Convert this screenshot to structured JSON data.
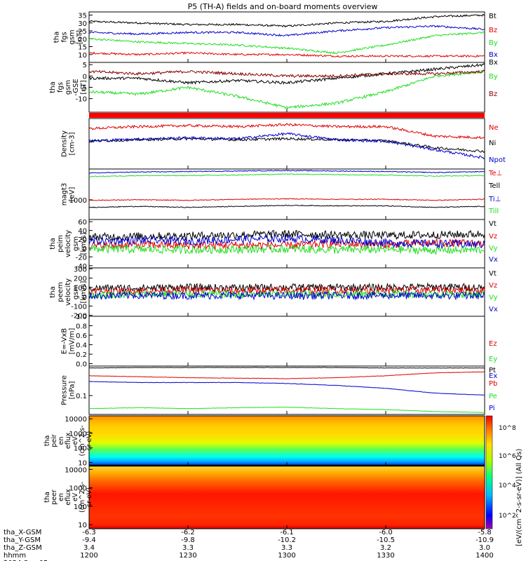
{
  "title": "P5 (TH-A) fields and on-board moments overview",
  "colors": {
    "black": "#000000",
    "red": "#e00000",
    "green": "#22dd22",
    "blue": "#0000cc"
  },
  "chart_data": [
    {
      "type": "line",
      "id": "fgs-btot",
      "ylabel": [
        "tha",
        "fgs",
        "gsm",
        "[nT]"
      ],
      "ylim": [
        5,
        37
      ],
      "yticks": [
        10,
        15,
        20,
        25,
        30,
        35
      ],
      "series": [
        {
          "name": "Bt",
          "color": "#000000",
          "x": [
            1200,
            1215,
            1230,
            1245,
            1300,
            1315,
            1330,
            1345,
            1400
          ],
          "values": [
            31,
            30,
            29,
            29,
            28,
            30,
            31,
            34,
            35
          ]
        },
        {
          "name": "Bz",
          "color": "#e00000",
          "x": [
            1200,
            1215,
            1230,
            1245,
            1300,
            1315,
            1330,
            1345,
            1400
          ],
          "values": [
            11,
            10,
            11,
            10,
            10,
            9,
            9,
            9,
            9
          ]
        },
        {
          "name": "By",
          "color": "#22dd22",
          "x": [
            1200,
            1215,
            1230,
            1245,
            1300,
            1315,
            1330,
            1345,
            1400
          ],
          "values": [
            20,
            18,
            17,
            16,
            14,
            11,
            16,
            22,
            24
          ]
        },
        {
          "name": "Bx",
          "color": "#0000cc",
          "x": [
            1200,
            1215,
            1230,
            1245,
            1300,
            1315,
            1330,
            1345,
            1400
          ],
          "values": [
            24,
            23,
            24,
            24,
            22,
            25,
            27,
            28,
            26
          ]
        }
      ]
    },
    {
      "type": "line",
      "id": "fgs-gse",
      "ylabel": [
        "tha",
        "fgs",
        "gsm",
        "-GSE",
        "[nT]"
      ],
      "ylim": [
        -16,
        6
      ],
      "yticks": [
        -10,
        -5,
        0,
        5
      ],
      "series": [
        {
          "name": "Bx",
          "color": "#000000",
          "x": [
            1200,
            1215,
            1230,
            1245,
            1300,
            1315,
            1330,
            1345,
            1400
          ],
          "values": [
            -1,
            -1,
            -3,
            -2,
            -3,
            -1,
            1,
            3,
            5
          ]
        },
        {
          "name": "By",
          "color": "#22dd22",
          "x": [
            1200,
            1215,
            1230,
            1245,
            1300,
            1315,
            1330,
            1345,
            1400
          ],
          "values": [
            -7,
            -8,
            -5,
            -9,
            -14,
            -12,
            -7,
            0,
            2
          ]
        },
        {
          "name": "Bz",
          "color": "#8b0000",
          "x": [
            1200,
            1215,
            1230,
            1245,
            1300,
            1315,
            1330,
            1345,
            1400
          ],
          "values": [
            2,
            1,
            2,
            1,
            0,
            0,
            1,
            1,
            2
          ]
        }
      ]
    },
    {
      "type": "bar",
      "id": "mode-bar",
      "color": "#ff0000"
    },
    {
      "type": "line",
      "id": "density",
      "ylabel": [
        "Density",
        "[cm-3]"
      ],
      "series": [
        {
          "name": "Ne",
          "color": "#e00000",
          "x": [
            1200,
            1215,
            1230,
            1245,
            1300,
            1315,
            1330,
            1345,
            1400
          ],
          "values": [
            0.8,
            0.84,
            0.86,
            0.84,
            0.88,
            0.84,
            0.84,
            0.65,
            0.62
          ]
        },
        {
          "name": "Ni",
          "color": "#000000",
          "x": [
            1200,
            1215,
            1230,
            1245,
            1300,
            1315,
            1330,
            1345,
            1400
          ],
          "values": [
            0.55,
            0.58,
            0.6,
            0.58,
            0.6,
            0.58,
            0.56,
            0.42,
            0.35
          ]
        },
        {
          "name": "Npot",
          "color": "#0000cc",
          "x": [
            1200,
            1215,
            1230,
            1245,
            1300,
            1315,
            1330,
            1345,
            1400
          ],
          "values": [
            0.56,
            0.59,
            0.62,
            0.6,
            0.7,
            0.58,
            0.55,
            0.38,
            0.22
          ]
        }
      ]
    },
    {
      "type": "line",
      "id": "temperature",
      "ylabel": [
        "magt3",
        "[eV]"
      ],
      "yticks": [
        1000
      ],
      "series": [
        {
          "name": "Te⊥",
          "color": "#e00000",
          "x": [
            1200,
            1215,
            1230,
            1245,
            1300,
            1315,
            1330,
            1345,
            1400
          ],
          "values": [
            0.38,
            0.39,
            0.38,
            0.4,
            0.41,
            0.4,
            0.4,
            0.38,
            0.4
          ]
        },
        {
          "name": "Tell",
          "color": "#000000",
          "x": [
            1200,
            1215,
            1230,
            1245,
            1300,
            1315,
            1330,
            1345,
            1400
          ],
          "values": [
            0.24,
            0.26,
            0.24,
            0.26,
            0.28,
            0.27,
            0.27,
            0.24,
            0.26
          ]
        },
        {
          "name": "Ti⊥",
          "color": "#0000cc",
          "x": [
            1200,
            1215,
            1230,
            1245,
            1300,
            1315,
            1330,
            1345,
            1400
          ],
          "values": [
            0.92,
            0.94,
            0.95,
            0.96,
            0.97,
            0.96,
            0.95,
            0.93,
            0.95
          ]
        },
        {
          "name": "Till",
          "color": "#22dd22",
          "x": [
            1200,
            1215,
            1230,
            1245,
            1300,
            1315,
            1330,
            1345,
            1400
          ],
          "values": [
            0.85,
            0.87,
            0.87,
            0.88,
            0.9,
            0.89,
            0.88,
            0.86,
            0.87
          ]
        }
      ]
    },
    {
      "type": "line",
      "id": "peim-velocity",
      "ylabel": [
        "tha",
        "peim",
        "velocity",
        "gsm",
        "[km/s]"
      ],
      "ylim": [
        -45,
        65
      ],
      "yticks": [
        -40,
        -20,
        0,
        20,
        40,
        60
      ],
      "series": [
        {
          "name": "Vt",
          "color": "#000000",
          "x": [
            1200,
            1215,
            1230,
            1245,
            1300,
            1315,
            1330,
            1345,
            1400
          ],
          "values": [
            25,
            27,
            28,
            30,
            32,
            30,
            29,
            30,
            32
          ]
        },
        {
          "name": "Vz",
          "color": "#e00000",
          "x": [
            1200,
            1215,
            1230,
            1245,
            1300,
            1315,
            1330,
            1345,
            1400
          ],
          "values": [
            5,
            8,
            6,
            7,
            6,
            10,
            8,
            12,
            10
          ]
        },
        {
          "name": "Vy",
          "color": "#22dd22",
          "x": [
            1200,
            1215,
            1230,
            1245,
            1300,
            1315,
            1330,
            1345,
            1400
          ],
          "values": [
            -2,
            -3,
            -4,
            -3,
            -2,
            -4,
            -3,
            -5,
            -4
          ]
        },
        {
          "name": "Vx",
          "color": "#0000cc",
          "x": [
            1200,
            1215,
            1230,
            1245,
            1300,
            1315,
            1330,
            1345,
            1400
          ],
          "values": [
            15,
            18,
            16,
            20,
            22,
            18,
            12,
            10,
            8
          ]
        }
      ]
    },
    {
      "type": "line",
      "id": "peem-velocity",
      "ylabel": [
        "tha",
        "peem",
        "velocity",
        "gsm",
        "[km/s]"
      ],
      "ylim": [
        -210,
        310
      ],
      "yticks": [
        -200,
        -100,
        0,
        100,
        200,
        300
      ],
      "series": [
        {
          "name": "Vt",
          "color": "#000000",
          "x": [
            1200,
            1215,
            1230,
            1245,
            1300,
            1315,
            1330,
            1345,
            1400
          ],
          "values": [
            90,
            95,
            100,
            95,
            100,
            98,
            100,
            105,
            100
          ]
        },
        {
          "name": "Vz",
          "color": "#e00000",
          "x": [
            1200,
            1215,
            1230,
            1245,
            1300,
            1315,
            1330,
            1345,
            1400
          ],
          "values": [
            60,
            65,
            70,
            65,
            70,
            68,
            70,
            72,
            70
          ]
        },
        {
          "name": "Vy",
          "color": "#22dd22",
          "x": [
            1200,
            1215,
            1230,
            1245,
            1300,
            1315,
            1330,
            1345,
            1400
          ],
          "values": [
            20,
            25,
            30,
            22,
            28,
            25,
            30,
            28,
            25
          ]
        },
        {
          "name": "Vx",
          "color": "#0000cc",
          "x": [
            1200,
            1215,
            1230,
            1245,
            1300,
            1315,
            1330,
            1345,
            1400
          ],
          "values": [
            10,
            15,
            12,
            14,
            10,
            12,
            15,
            10,
            12
          ]
        }
      ]
    },
    {
      "type": "line",
      "id": "efield",
      "ylabel": [
        "E=-VxB",
        "[mV/m]"
      ],
      "ylim": [
        -0.05,
        1.0
      ],
      "yticks": [
        0.0,
        0.2,
        0.4,
        0.6,
        0.8,
        1.0
      ],
      "series": [
        {
          "name": "Ez",
          "color": "#e00000",
          "x": [],
          "values": []
        },
        {
          "name": "Ey",
          "color": "#22dd22",
          "x": [],
          "values": []
        },
        {
          "name": "Ex",
          "color": "#0000cc",
          "x": [],
          "values": []
        }
      ]
    },
    {
      "type": "line",
      "id": "pressure",
      "ylabel": [
        "Pressure",
        "[nPa]"
      ],
      "yticks": [
        0.1
      ],
      "series": [
        {
          "name": "Pt",
          "color": "#000000",
          "x": [
            1200,
            1215,
            1230,
            1245,
            1300,
            1315,
            1330,
            1345,
            1400
          ],
          "values": [
            0.96,
            0.97,
            0.97,
            0.97,
            0.97,
            0.97,
            0.96,
            0.96,
            0.96
          ]
        },
        {
          "name": "Pb",
          "color": "#e00000",
          "x": [
            1200,
            1215,
            1230,
            1245,
            1300,
            1315,
            1330,
            1345,
            1400
          ],
          "values": [
            0.8,
            0.78,
            0.76,
            0.75,
            0.74,
            0.76,
            0.8,
            0.86,
            0.88
          ]
        },
        {
          "name": "Pe",
          "color": "#22dd22",
          "x": [
            1200,
            1215,
            1230,
            1245,
            1300,
            1315,
            1330,
            1345,
            1400
          ],
          "values": [
            0.12,
            0.14,
            0.12,
            0.14,
            0.15,
            0.12,
            0.1,
            0.06,
            0.04
          ]
        },
        {
          "name": "Pi",
          "color": "#0000cc",
          "x": [
            1200,
            1215,
            1230,
            1245,
            1300,
            1315,
            1330,
            1345,
            1400
          ],
          "values": [
            0.68,
            0.66,
            0.66,
            0.66,
            0.64,
            0.6,
            0.54,
            0.44,
            0.4
          ]
        }
      ]
    },
    {
      "type": "heatmap",
      "id": "peir-spectrogram",
      "ylabel": [
        "tha",
        "peir",
        "en",
        "eflux",
        "eV",
        "(cm^2-s-",
        "sr-eV)"
      ],
      "yticks": [
        10,
        100,
        1000,
        10000
      ]
    },
    {
      "type": "heatmap",
      "id": "peer-spectrogram",
      "ylabel": [
        "tha",
        "peer",
        "en",
        "eflux",
        "eV",
        "(cm^2-s-",
        "sr-eV)"
      ],
      "yticks": [
        10,
        100,
        1000,
        10000
      ]
    }
  ],
  "colorbar": {
    "label": "[eV/(cm^2-s-sr-eV)] (All Qs)",
    "ticks": [
      "10^2",
      "10^4",
      "10^6",
      "10^8"
    ],
    "overlay_label": "eV/(cm^2-s-sr-eV)] (All Qs)"
  },
  "xaxis": {
    "ticks": [
      1200,
      1230,
      1300,
      1330,
      1400
    ],
    "rows": [
      {
        "label": "tha_X-GSM",
        "values": [
          "-6.3",
          "-6.2",
          "-6.1",
          "-6.0",
          "-5.8"
        ]
      },
      {
        "label": "tha_Y-GSM",
        "values": [
          "-9.4",
          "-9.8",
          "-10.2",
          "-10.5",
          "-10.9"
        ]
      },
      {
        "label": "tha_Z-GSM",
        "values": [
          "3.4",
          "3.3",
          "3.3",
          "3.2",
          "3.0"
        ]
      },
      {
        "label": "hhmm",
        "values": [
          "1200",
          "1230",
          "1300",
          "1330",
          "1400"
        ]
      }
    ],
    "date": "2024 Sep 05"
  }
}
